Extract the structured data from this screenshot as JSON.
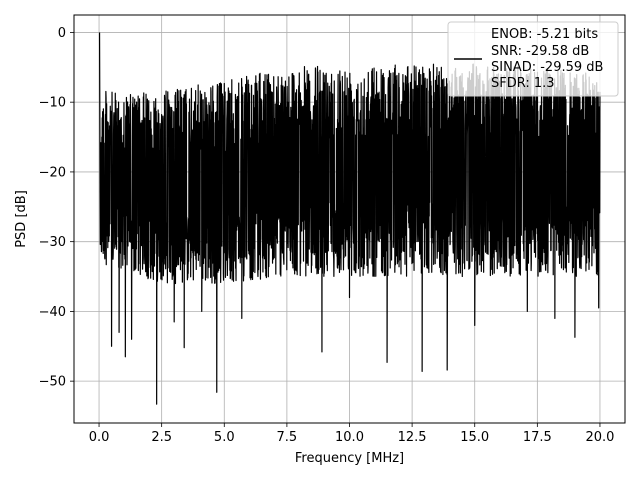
{
  "chart_data": {
    "type": "line",
    "title": "",
    "xlabel": "Frequency [MHz]",
    "ylabel": "PSD [dB]",
    "xlim": [
      -1.0,
      21.0
    ],
    "ylim": [
      -56.0,
      2.5
    ],
    "xticks": [
      0.0,
      2.5,
      5.0,
      7.5,
      10.0,
      12.5,
      15.0,
      17.5,
      20.0
    ],
    "xtick_labels": [
      "0.0",
      "2.5",
      "5.0",
      "7.5",
      "10.0",
      "12.5",
      "15.0",
      "17.5",
      "20.0"
    ],
    "yticks": [
      0,
      -10,
      -20,
      -30,
      -40,
      -50
    ],
    "ytick_labels": [
      "0",
      "−10",
      "−20",
      "−30",
      "−40",
      "−50"
    ],
    "grid": true,
    "legend_position": "top-right",
    "legend_lines": [
      "ENOB: -5.21 bits",
      "SNR: -29.58 dB",
      "SINAD: -29.59 dB",
      "SFDR: 1.3"
    ],
    "series": [
      {
        "color": "#000000",
        "x_range": [
          0.0,
          20.0
        ],
        "peak": {
          "x": 0.02,
          "y": 0.0
        },
        "upper_envelope": {
          "x": [
            0,
            1,
            3,
            5,
            7.5,
            10,
            12.5,
            15,
            17.5,
            20
          ],
          "y": [
            -8,
            -9,
            -8,
            -7,
            -5,
            -4.5,
            -4.5,
            -4.5,
            -5,
            -6
          ]
        },
        "lower_envelope": {
          "x": [
            0,
            2.5,
            5,
            7.5,
            10,
            12.5,
            15,
            17.5,
            20
          ],
          "y": [
            -33,
            -36,
            -36,
            -35,
            -35,
            -35,
            -35,
            -35,
            -35
          ]
        },
        "deep_dips": [
          {
            "x": 0.5,
            "y": -45
          },
          {
            "x": 0.8,
            "y": -43
          },
          {
            "x": 1.05,
            "y": -46.5
          },
          {
            "x": 1.3,
            "y": -44
          },
          {
            "x": 2.3,
            "y": -53.3
          },
          {
            "x": 3.0,
            "y": -41.5
          },
          {
            "x": 3.4,
            "y": -45.2
          },
          {
            "x": 4.1,
            "y": -40
          },
          {
            "x": 4.7,
            "y": -51.6
          },
          {
            "x": 5.7,
            "y": -41
          },
          {
            "x": 8.9,
            "y": -45.8
          },
          {
            "x": 10.0,
            "y": -38
          },
          {
            "x": 11.5,
            "y": -47.3
          },
          {
            "x": 12.9,
            "y": -48.6
          },
          {
            "x": 13.9,
            "y": -48.4
          },
          {
            "x": 15.0,
            "y": -42
          },
          {
            "x": 17.1,
            "y": -40
          },
          {
            "x": 18.2,
            "y": -41
          },
          {
            "x": 19.0,
            "y": -43.7
          },
          {
            "x": 19.95,
            "y": -39.5
          }
        ]
      }
    ]
  }
}
